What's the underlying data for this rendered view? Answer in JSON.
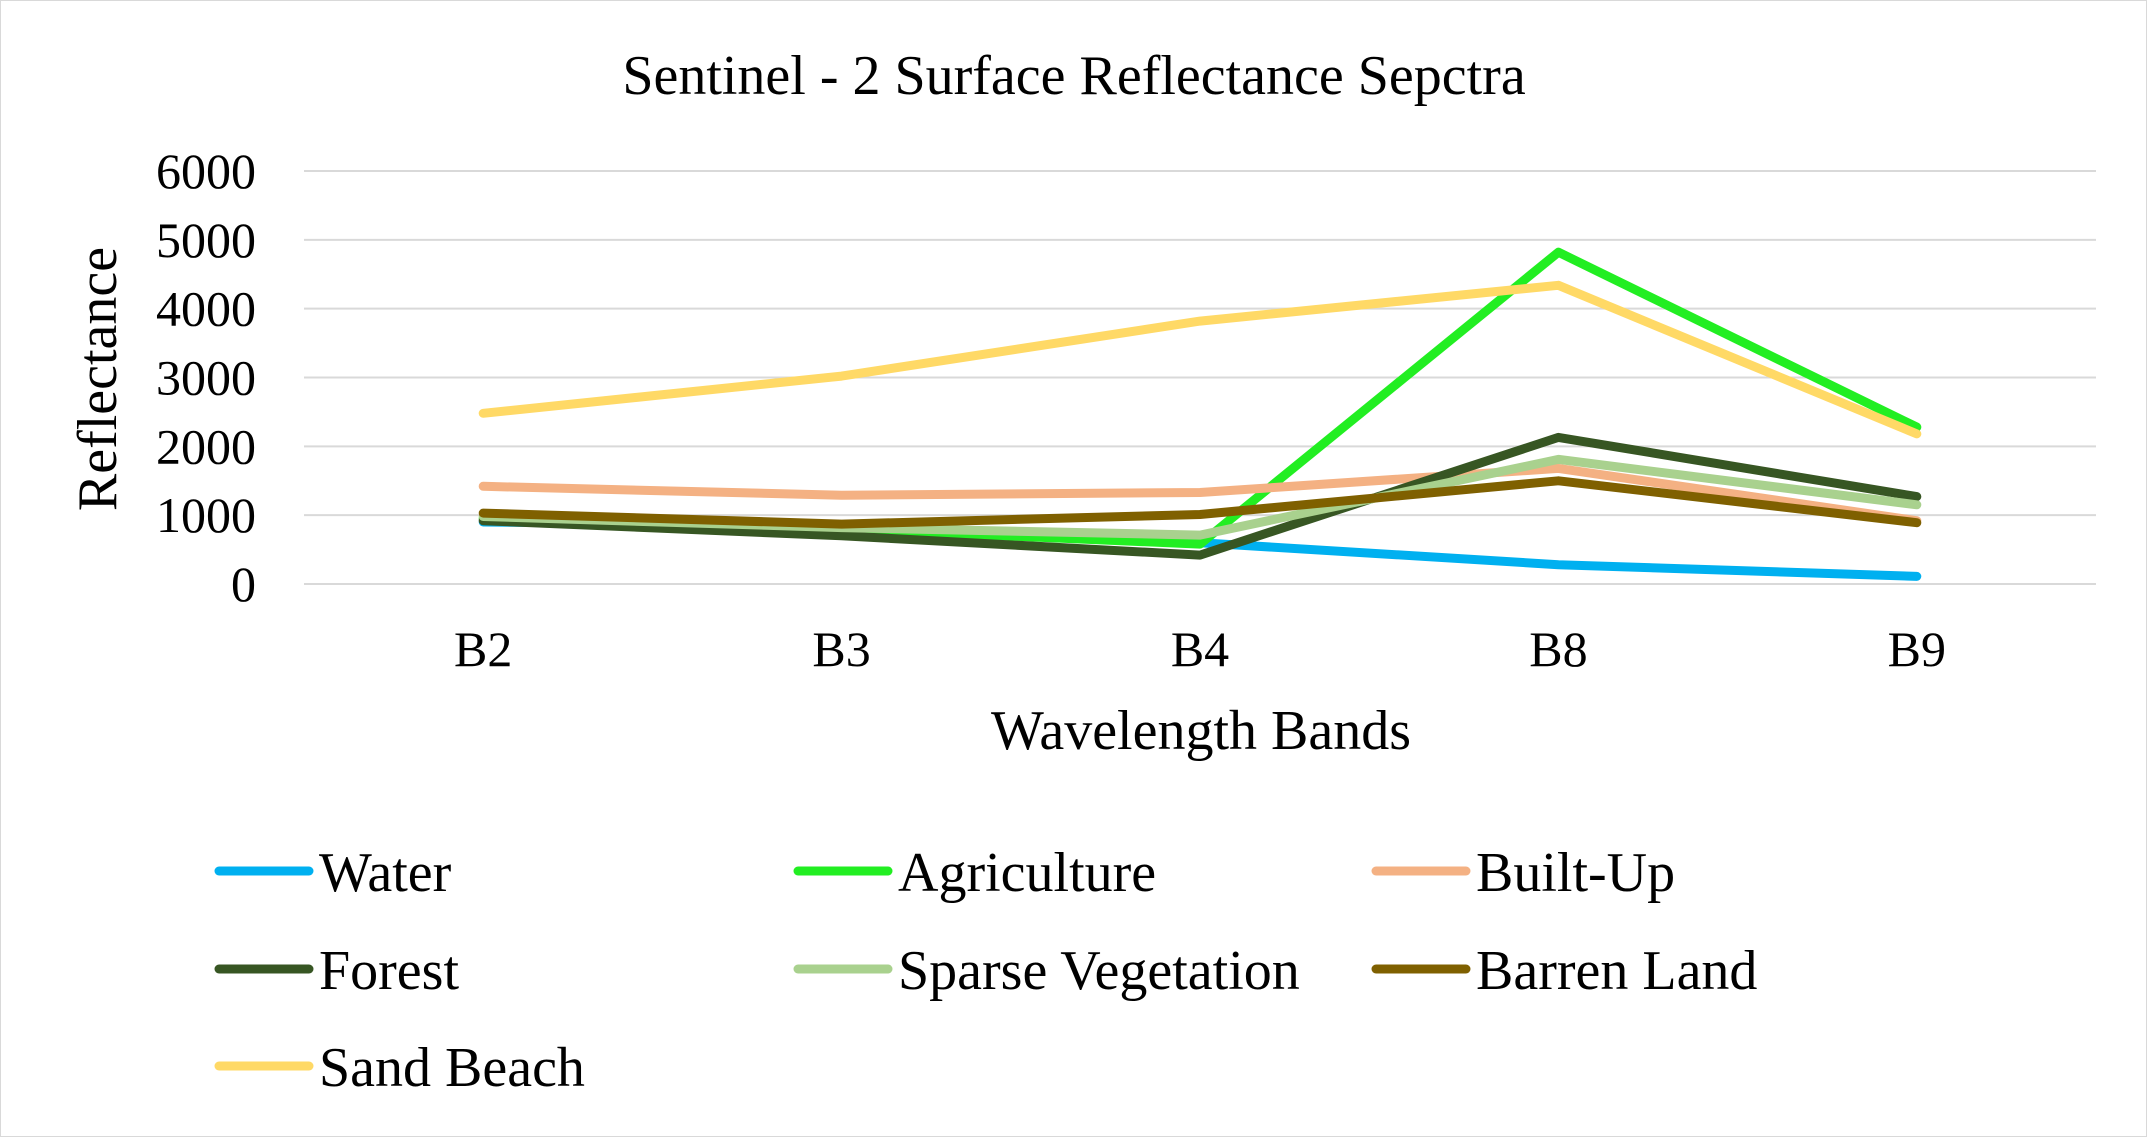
{
  "chart_data": {
    "type": "line",
    "title": "Sentinel - 2 Surface Reflectance Sepctra",
    "xlabel": "Wavelength Bands",
    "ylabel": "Reflectance",
    "categories": [
      "B2",
      "B3",
      "B4",
      "B8",
      "B9"
    ],
    "ylim": [
      0,
      6000
    ],
    "yticks": [
      0,
      1000,
      2000,
      3000,
      4000,
      5000,
      6000
    ],
    "grid": true,
    "legend_position": "bottom",
    "series": [
      {
        "name": "Water",
        "color": "#00b0f0",
        "values": [
          900,
          850,
          600,
          280,
          110
        ]
      },
      {
        "name": "Agriculture",
        "color": "#22ee22",
        "values": [
          950,
          800,
          580,
          4820,
          2280
        ]
      },
      {
        "name": "Built-Up",
        "color": "#f4b183",
        "values": [
          1420,
          1290,
          1330,
          1680,
          920
        ]
      },
      {
        "name": "Forest",
        "color": "#375623",
        "values": [
          920,
          700,
          420,
          2130,
          1270
        ]
      },
      {
        "name": "Sparse Vegetation",
        "color": "#a9d18e",
        "values": [
          980,
          820,
          710,
          1810,
          1150
        ]
      },
      {
        "name": "Barren Land",
        "color": "#7f6000",
        "values": [
          1030,
          870,
          1010,
          1500,
          890
        ]
      },
      {
        "name": "Sand Beach",
        "color": "#ffd966",
        "values": [
          2480,
          3020,
          3820,
          4340,
          2180
        ]
      }
    ]
  }
}
